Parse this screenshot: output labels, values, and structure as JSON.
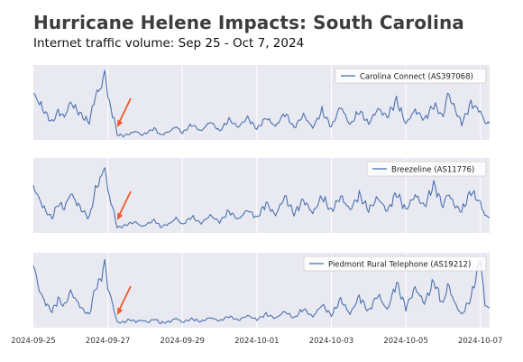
{
  "title": "Hurricane Helene Impacts: South Carolina",
  "subtitle": "Internet traffic volume: Sep 25 - Oct 7, 2024",
  "colors": {
    "panel_background": "#e9e9f1",
    "gridline": "#ffffff",
    "line": "#4c72b0",
    "arrow": "#f05a28"
  },
  "chart_data": {
    "type": "line",
    "x_start": "2024-09-25",
    "x_end": "2024-10-07T06:00",
    "x_ticks": [
      "2024-09-25",
      "2024-09-27",
      "2024-09-29",
      "2024-10-01",
      "2024-10-03",
      "2024-10-05",
      "2024-10-07"
    ],
    "grid": true,
    "legend_position": "top-right",
    "y_axis_labels": "none",
    "annotation": {
      "type": "arrow",
      "points_to": "2024-09-27T06:00",
      "meaning": "traffic drop"
    },
    "panels": [
      {
        "series_name": "Carolina Connect (AS397068)",
        "ylim": [
          0,
          1
        ],
        "anchors": [
          [
            "2024-09-25T00:00",
            0.65
          ],
          [
            "2024-09-25T04:00",
            0.5
          ],
          [
            "2024-09-25T08:00",
            0.35
          ],
          [
            "2024-09-25T12:00",
            0.22
          ],
          [
            "2024-09-25T16:00",
            0.38
          ],
          [
            "2024-09-25T20:00",
            0.3
          ],
          [
            "2024-09-26T00:00",
            0.52
          ],
          [
            "2024-09-26T04:00",
            0.4
          ],
          [
            "2024-09-26T08:00",
            0.3
          ],
          [
            "2024-09-26T12:00",
            0.22
          ],
          [
            "2024-09-26T16:00",
            0.62
          ],
          [
            "2024-09-26T20:00",
            0.75
          ],
          [
            "2024-09-26T22:00",
            0.98
          ],
          [
            "2024-09-27T00:00",
            0.62
          ],
          [
            "2024-09-27T02:00",
            0.4
          ],
          [
            "2024-09-27T04:00",
            0.28
          ],
          [
            "2024-09-27T06:00",
            0.04
          ],
          [
            "2024-09-27T10:00",
            0.02
          ],
          [
            "2024-09-27T14:00",
            0.05
          ],
          [
            "2024-09-27T18:00",
            0.09
          ],
          [
            "2024-09-27T22:00",
            0.03
          ],
          [
            "2024-09-28T02:00",
            0.08
          ],
          [
            "2024-09-28T06:00",
            0.13
          ],
          [
            "2024-09-28T10:00",
            0.03
          ],
          [
            "2024-09-28T16:00",
            0.09
          ],
          [
            "2024-09-28T20:00",
            0.16
          ],
          [
            "2024-09-29T00:00",
            0.06
          ],
          [
            "2024-09-29T06:00",
            0.19
          ],
          [
            "2024-09-29T12:00",
            0.09
          ],
          [
            "2024-09-29T18:00",
            0.23
          ],
          [
            "2024-09-30T00:00",
            0.09
          ],
          [
            "2024-09-30T06:00",
            0.26
          ],
          [
            "2024-09-30T12:00",
            0.15
          ],
          [
            "2024-09-30T18:00",
            0.29
          ],
          [
            "2024-10-01T00:00",
            0.12
          ],
          [
            "2024-10-01T06:00",
            0.29
          ],
          [
            "2024-10-01T12:00",
            0.16
          ],
          [
            "2024-10-01T18:00",
            0.36
          ],
          [
            "2024-10-02T00:00",
            0.14
          ],
          [
            "2024-10-02T06:00",
            0.33
          ],
          [
            "2024-10-02T12:00",
            0.14
          ],
          [
            "2024-10-02T18:00",
            0.39
          ],
          [
            "2024-10-03T00:00",
            0.15
          ],
          [
            "2024-10-03T06:00",
            0.46
          ],
          [
            "2024-10-03T12:00",
            0.18
          ],
          [
            "2024-10-03T18:00",
            0.39
          ],
          [
            "2024-10-04T00:00",
            0.2
          ],
          [
            "2024-10-04T06:00",
            0.42
          ],
          [
            "2024-10-04T12:00",
            0.3
          ],
          [
            "2024-10-04T18:00",
            0.55
          ],
          [
            "2024-10-05T00:00",
            0.2
          ],
          [
            "2024-10-05T06:00",
            0.4
          ],
          [
            "2024-10-05T12:00",
            0.26
          ],
          [
            "2024-10-05T18:00",
            0.48
          ],
          [
            "2024-10-06T00:00",
            0.3
          ],
          [
            "2024-10-06T03:00",
            0.65
          ],
          [
            "2024-10-06T08:00",
            0.4
          ],
          [
            "2024-10-06T12:00",
            0.2
          ],
          [
            "2024-10-06T18:00",
            0.5
          ],
          [
            "2024-10-07T00:00",
            0.38
          ],
          [
            "2024-10-07T03:00",
            0.22
          ],
          [
            "2024-10-07T06:00",
            0.2
          ]
        ]
      },
      {
        "series_name": "Breezeline (AS11776)",
        "ylim": [
          0,
          1
        ],
        "anchors": [
          [
            "2024-09-25T00:00",
            0.65
          ],
          [
            "2024-09-25T04:00",
            0.45
          ],
          [
            "2024-09-25T08:00",
            0.28
          ],
          [
            "2024-09-25T12:00",
            0.18
          ],
          [
            "2024-09-25T16:00",
            0.4
          ],
          [
            "2024-09-25T20:00",
            0.32
          ],
          [
            "2024-09-26T00:00",
            0.55
          ],
          [
            "2024-09-26T04:00",
            0.4
          ],
          [
            "2024-09-26T08:00",
            0.28
          ],
          [
            "2024-09-26T12:00",
            0.18
          ],
          [
            "2024-09-26T16:00",
            0.6
          ],
          [
            "2024-09-26T20:00",
            0.8
          ],
          [
            "2024-09-26T22:00",
            0.95
          ],
          [
            "2024-09-27T00:00",
            0.58
          ],
          [
            "2024-09-27T02:00",
            0.42
          ],
          [
            "2024-09-27T04:00",
            0.25
          ],
          [
            "2024-09-27T06:00",
            0.04
          ],
          [
            "2024-09-27T10:00",
            0.06
          ],
          [
            "2024-09-27T14:00",
            0.1
          ],
          [
            "2024-09-27T18:00",
            0.12
          ],
          [
            "2024-09-27T22:00",
            0.05
          ],
          [
            "2024-09-28T02:00",
            0.1
          ],
          [
            "2024-09-28T06:00",
            0.15
          ],
          [
            "2024-09-28T10:00",
            0.05
          ],
          [
            "2024-09-28T16:00",
            0.1
          ],
          [
            "2024-09-28T20:00",
            0.18
          ],
          [
            "2024-09-29T00:00",
            0.08
          ],
          [
            "2024-09-29T06:00",
            0.2
          ],
          [
            "2024-09-29T12:00",
            0.1
          ],
          [
            "2024-09-29T18:00",
            0.22
          ],
          [
            "2024-09-30T00:00",
            0.12
          ],
          [
            "2024-09-30T06:00",
            0.28
          ],
          [
            "2024-09-30T12:00",
            0.16
          ],
          [
            "2024-09-30T18:00",
            0.3
          ],
          [
            "2024-10-01T00:00",
            0.18
          ],
          [
            "2024-10-01T06:00",
            0.4
          ],
          [
            "2024-10-01T12:00",
            0.22
          ],
          [
            "2024-10-01T18:00",
            0.5
          ],
          [
            "2024-10-02T00:00",
            0.24
          ],
          [
            "2024-10-02T06:00",
            0.45
          ],
          [
            "2024-10-02T12:00",
            0.25
          ],
          [
            "2024-10-02T18:00",
            0.5
          ],
          [
            "2024-10-03T00:00",
            0.28
          ],
          [
            "2024-10-03T06:00",
            0.5
          ],
          [
            "2024-10-03T12:00",
            0.3
          ],
          [
            "2024-10-03T18:00",
            0.52
          ],
          [
            "2024-10-04T00:00",
            0.3
          ],
          [
            "2024-10-04T06:00",
            0.48
          ],
          [
            "2024-10-04T12:00",
            0.28
          ],
          [
            "2024-10-04T18:00",
            0.55
          ],
          [
            "2024-10-05T00:00",
            0.3
          ],
          [
            "2024-10-05T06:00",
            0.52
          ],
          [
            "2024-10-05T12:00",
            0.35
          ],
          [
            "2024-10-05T18:00",
            0.68
          ],
          [
            "2024-10-06T00:00",
            0.35
          ],
          [
            "2024-10-06T03:00",
            0.55
          ],
          [
            "2024-10-06T08:00",
            0.35
          ],
          [
            "2024-10-06T12:00",
            0.28
          ],
          [
            "2024-10-06T18:00",
            0.58
          ],
          [
            "2024-10-07T00:00",
            0.4
          ],
          [
            "2024-10-07T03:00",
            0.22
          ],
          [
            "2024-10-07T06:00",
            0.18
          ]
        ]
      },
      {
        "series_name": "Piedmont Rural Telephone (AS19212)",
        "ylim": [
          0,
          1
        ],
        "anchors": [
          [
            "2024-09-25T00:00",
            0.9
          ],
          [
            "2024-09-25T04:00",
            0.5
          ],
          [
            "2024-09-25T08:00",
            0.32
          ],
          [
            "2024-09-25T12:00",
            0.2
          ],
          [
            "2024-09-25T16:00",
            0.38
          ],
          [
            "2024-09-25T20:00",
            0.28
          ],
          [
            "2024-09-26T00:00",
            0.5
          ],
          [
            "2024-09-26T04:00",
            0.35
          ],
          [
            "2024-09-26T08:00",
            0.22
          ],
          [
            "2024-09-26T12:00",
            0.15
          ],
          [
            "2024-09-26T16:00",
            0.55
          ],
          [
            "2024-09-26T20:00",
            0.7
          ],
          [
            "2024-09-26T22:00",
            0.95
          ],
          [
            "2024-09-27T00:00",
            0.55
          ],
          [
            "2024-09-27T02:00",
            0.4
          ],
          [
            "2024-09-27T04:00",
            0.22
          ],
          [
            "2024-09-27T06:00",
            0.04
          ],
          [
            "2024-09-27T10:00",
            0.04
          ],
          [
            "2024-09-27T14:00",
            0.08
          ],
          [
            "2024-09-27T18:00",
            0.05
          ],
          [
            "2024-09-27T22:00",
            0.07
          ],
          [
            "2024-09-28T02:00",
            0.04
          ],
          [
            "2024-09-28T06:00",
            0.09
          ],
          [
            "2024-09-28T10:00",
            0.03
          ],
          [
            "2024-09-28T16:00",
            0.05
          ],
          [
            "2024-09-28T20:00",
            0.1
          ],
          [
            "2024-09-29T00:00",
            0.04
          ],
          [
            "2024-09-29T06:00",
            0.09
          ],
          [
            "2024-09-29T12:00",
            0.05
          ],
          [
            "2024-09-29T18:00",
            0.11
          ],
          [
            "2024-09-30T00:00",
            0.06
          ],
          [
            "2024-09-30T06:00",
            0.13
          ],
          [
            "2024-09-30T12:00",
            0.07
          ],
          [
            "2024-09-30T18:00",
            0.14
          ],
          [
            "2024-10-01T00:00",
            0.08
          ],
          [
            "2024-10-01T06:00",
            0.16
          ],
          [
            "2024-10-01T12:00",
            0.1
          ],
          [
            "2024-10-01T18:00",
            0.2
          ],
          [
            "2024-10-02T00:00",
            0.1
          ],
          [
            "2024-10-02T06:00",
            0.24
          ],
          [
            "2024-10-02T12:00",
            0.12
          ],
          [
            "2024-10-02T18:00",
            0.3
          ],
          [
            "2024-10-03T00:00",
            0.14
          ],
          [
            "2024-10-03T06:00",
            0.38
          ],
          [
            "2024-10-03T12:00",
            0.16
          ],
          [
            "2024-10-03T18:00",
            0.42
          ],
          [
            "2024-10-04T00:00",
            0.2
          ],
          [
            "2024-10-04T06:00",
            0.45
          ],
          [
            "2024-10-04T12:00",
            0.22
          ],
          [
            "2024-10-04T18:00",
            0.62
          ],
          [
            "2024-10-05T00:00",
            0.25
          ],
          [
            "2024-10-05T06:00",
            0.55
          ],
          [
            "2024-10-05T12:00",
            0.32
          ],
          [
            "2024-10-05T18:00",
            0.65
          ],
          [
            "2024-10-06T00:00",
            0.3
          ],
          [
            "2024-10-06T03:00",
            0.6
          ],
          [
            "2024-10-06T08:00",
            0.3
          ],
          [
            "2024-10-06T12:00",
            0.15
          ],
          [
            "2024-10-06T18:00",
            0.4
          ],
          [
            "2024-10-07T00:00",
            0.98
          ],
          [
            "2024-10-07T03:00",
            0.3
          ],
          [
            "2024-10-07T06:00",
            0.25
          ]
        ]
      }
    ]
  }
}
